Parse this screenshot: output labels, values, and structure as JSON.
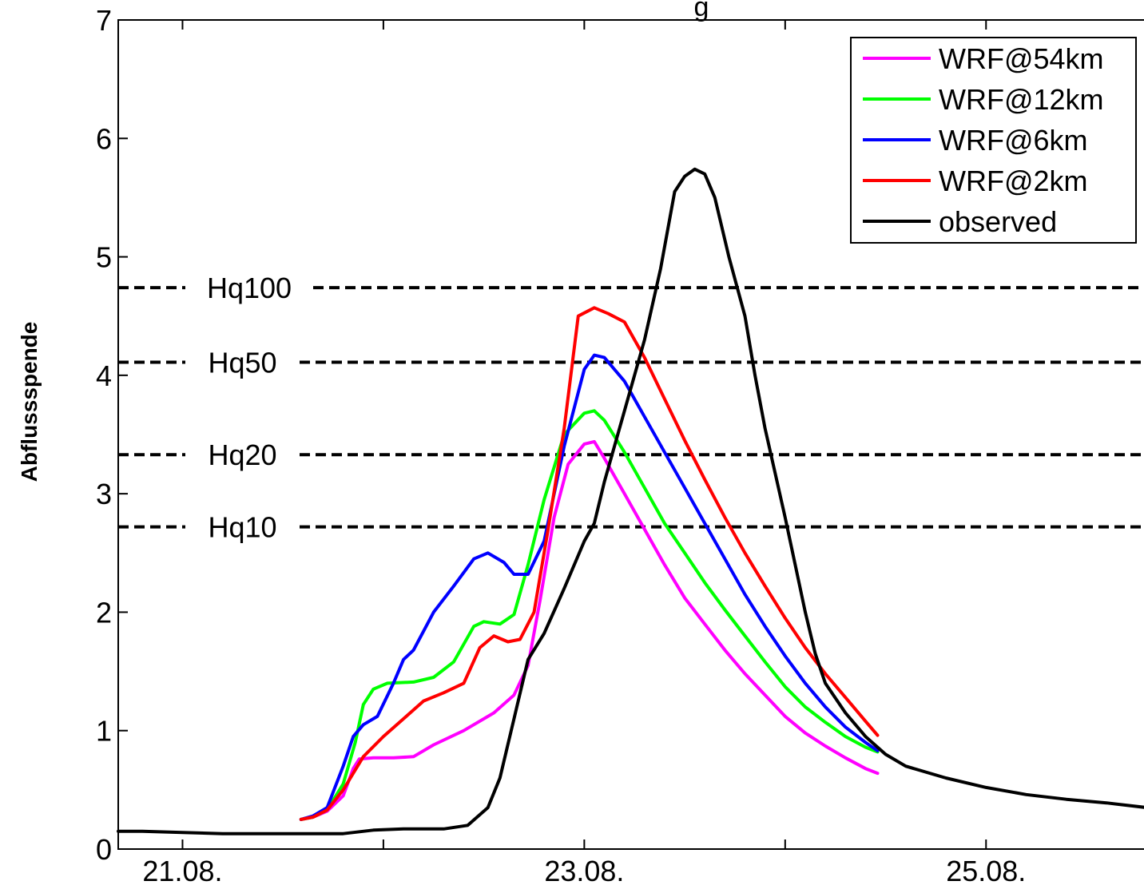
{
  "chart_data": {
    "type": "line",
    "title_fragment": "g",
    "ylabel": "Abflussspende",
    "xlabel": "",
    "x_tick_labels": [
      "21.08.",
      "23.08.",
      "25.08."
    ],
    "y_ticks": [
      0,
      1,
      2,
      3,
      4,
      5,
      6,
      7
    ],
    "xlim": [
      20.68,
      25.85
    ],
    "ylim": [
      0,
      7
    ],
    "grid": false,
    "legend_position": "top-right",
    "reference_lines": [
      {
        "label": "Hq100",
        "value": 4.74
      },
      {
        "label": "Hq50",
        "value": 4.11
      },
      {
        "label": "Hq20",
        "value": 3.33
      },
      {
        "label": "Hq10",
        "value": 2.72
      }
    ],
    "series": [
      {
        "name": "WRF@54km",
        "color": "#ff00ff",
        "points": [
          [
            21.59,
            0.25
          ],
          [
            21.65,
            0.27
          ],
          [
            21.72,
            0.32
          ],
          [
            21.8,
            0.45
          ],
          [
            21.85,
            0.68
          ],
          [
            21.88,
            0.76
          ],
          [
            21.95,
            0.77
          ],
          [
            22.05,
            0.77
          ],
          [
            22.15,
            0.78
          ],
          [
            22.25,
            0.88
          ],
          [
            22.4,
            1.0
          ],
          [
            22.55,
            1.15
          ],
          [
            22.65,
            1.3
          ],
          [
            22.72,
            1.55
          ],
          [
            22.78,
            2.1
          ],
          [
            22.85,
            2.8
          ],
          [
            22.92,
            3.25
          ],
          [
            23.0,
            3.42
          ],
          [
            23.05,
            3.44
          ],
          [
            23.1,
            3.3
          ],
          [
            23.2,
            3.0
          ],
          [
            23.3,
            2.7
          ],
          [
            23.4,
            2.4
          ],
          [
            23.5,
            2.12
          ],
          [
            23.6,
            1.9
          ],
          [
            23.7,
            1.68
          ],
          [
            23.8,
            1.48
          ],
          [
            23.9,
            1.3
          ],
          [
            24.0,
            1.12
          ],
          [
            24.1,
            0.98
          ],
          [
            24.2,
            0.87
          ],
          [
            24.3,
            0.77
          ],
          [
            24.4,
            0.68
          ],
          [
            24.46,
            0.64
          ]
        ]
      },
      {
        "name": "WRF@12km",
        "color": "#00ff00",
        "points": [
          [
            21.59,
            0.25
          ],
          [
            21.65,
            0.27
          ],
          [
            21.72,
            0.33
          ],
          [
            21.8,
            0.55
          ],
          [
            21.86,
            0.9
          ],
          [
            21.9,
            1.22
          ],
          [
            21.95,
            1.35
          ],
          [
            22.02,
            1.4
          ],
          [
            22.15,
            1.41
          ],
          [
            22.25,
            1.45
          ],
          [
            22.35,
            1.58
          ],
          [
            22.45,
            1.88
          ],
          [
            22.5,
            1.92
          ],
          [
            22.58,
            1.9
          ],
          [
            22.65,
            1.98
          ],
          [
            22.72,
            2.4
          ],
          [
            22.8,
            2.95
          ],
          [
            22.9,
            3.5
          ],
          [
            23.0,
            3.68
          ],
          [
            23.05,
            3.7
          ],
          [
            23.1,
            3.62
          ],
          [
            23.2,
            3.35
          ],
          [
            23.3,
            3.05
          ],
          [
            23.4,
            2.75
          ],
          [
            23.5,
            2.5
          ],
          [
            23.6,
            2.25
          ],
          [
            23.7,
            2.02
          ],
          [
            23.8,
            1.8
          ],
          [
            23.9,
            1.58
          ],
          [
            24.0,
            1.37
          ],
          [
            24.1,
            1.2
          ],
          [
            24.2,
            1.07
          ],
          [
            24.3,
            0.95
          ],
          [
            24.4,
            0.86
          ],
          [
            24.46,
            0.82
          ]
        ]
      },
      {
        "name": "WRF@6km",
        "color": "#0000ff",
        "points": [
          [
            21.59,
            0.25
          ],
          [
            21.65,
            0.28
          ],
          [
            21.72,
            0.35
          ],
          [
            21.8,
            0.7
          ],
          [
            21.85,
            0.95
          ],
          [
            21.9,
            1.05
          ],
          [
            21.97,
            1.12
          ],
          [
            22.05,
            1.4
          ],
          [
            22.1,
            1.6
          ],
          [
            22.15,
            1.68
          ],
          [
            22.25,
            2.0
          ],
          [
            22.35,
            2.22
          ],
          [
            22.45,
            2.45
          ],
          [
            22.52,
            2.5
          ],
          [
            22.6,
            2.42
          ],
          [
            22.65,
            2.32
          ],
          [
            22.72,
            2.32
          ],
          [
            22.8,
            2.6
          ],
          [
            22.9,
            3.4
          ],
          [
            23.0,
            4.05
          ],
          [
            23.05,
            4.17
          ],
          [
            23.1,
            4.15
          ],
          [
            23.2,
            3.95
          ],
          [
            23.3,
            3.65
          ],
          [
            23.4,
            3.35
          ],
          [
            23.5,
            3.05
          ],
          [
            23.6,
            2.75
          ],
          [
            23.7,
            2.45
          ],
          [
            23.8,
            2.15
          ],
          [
            23.9,
            1.88
          ],
          [
            24.0,
            1.63
          ],
          [
            24.1,
            1.4
          ],
          [
            24.2,
            1.2
          ],
          [
            24.3,
            1.03
          ],
          [
            24.4,
            0.9
          ],
          [
            24.46,
            0.83
          ]
        ]
      },
      {
        "name": "WRF@2km",
        "color": "#ff0000",
        "points": [
          [
            21.59,
            0.25
          ],
          [
            21.65,
            0.27
          ],
          [
            21.72,
            0.33
          ],
          [
            21.8,
            0.5
          ],
          [
            21.9,
            0.78
          ],
          [
            22.0,
            0.95
          ],
          [
            22.1,
            1.1
          ],
          [
            22.2,
            1.25
          ],
          [
            22.3,
            1.32
          ],
          [
            22.4,
            1.4
          ],
          [
            22.48,
            1.7
          ],
          [
            22.55,
            1.8
          ],
          [
            22.62,
            1.75
          ],
          [
            22.68,
            1.77
          ],
          [
            22.75,
            2.0
          ],
          [
            22.82,
            2.7
          ],
          [
            22.9,
            3.55
          ],
          [
            22.97,
            4.5
          ],
          [
            23.05,
            4.57
          ],
          [
            23.12,
            4.52
          ],
          [
            23.2,
            4.45
          ],
          [
            23.3,
            4.15
          ],
          [
            23.4,
            3.8
          ],
          [
            23.5,
            3.45
          ],
          [
            23.6,
            3.12
          ],
          [
            23.7,
            2.8
          ],
          [
            23.8,
            2.5
          ],
          [
            23.9,
            2.22
          ],
          [
            24.0,
            1.95
          ],
          [
            24.1,
            1.7
          ],
          [
            24.2,
            1.48
          ],
          [
            24.3,
            1.28
          ],
          [
            24.4,
            1.08
          ],
          [
            24.46,
            0.96
          ]
        ]
      },
      {
        "name": "observed",
        "color": "#000000",
        "points": [
          [
            20.68,
            0.15
          ],
          [
            20.8,
            0.15
          ],
          [
            21.0,
            0.14
          ],
          [
            21.2,
            0.13
          ],
          [
            21.4,
            0.13
          ],
          [
            21.6,
            0.13
          ],
          [
            21.8,
            0.13
          ],
          [
            21.95,
            0.16
          ],
          [
            22.1,
            0.17
          ],
          [
            22.3,
            0.17
          ],
          [
            22.42,
            0.2
          ],
          [
            22.52,
            0.35
          ],
          [
            22.58,
            0.6
          ],
          [
            22.65,
            1.1
          ],
          [
            22.72,
            1.6
          ],
          [
            22.8,
            1.82
          ],
          [
            22.9,
            2.2
          ],
          [
            23.0,
            2.6
          ],
          [
            23.05,
            2.75
          ],
          [
            23.1,
            3.1
          ],
          [
            23.2,
            3.7
          ],
          [
            23.3,
            4.3
          ],
          [
            23.38,
            4.9
          ],
          [
            23.45,
            5.55
          ],
          [
            23.5,
            5.68
          ],
          [
            23.55,
            5.74
          ],
          [
            23.6,
            5.7
          ],
          [
            23.65,
            5.5
          ],
          [
            23.72,
            5.0
          ],
          [
            23.8,
            4.5
          ],
          [
            23.85,
            4.0
          ],
          [
            23.9,
            3.55
          ],
          [
            24.0,
            2.8
          ],
          [
            24.05,
            2.4
          ],
          [
            24.1,
            2.0
          ],
          [
            24.15,
            1.65
          ],
          [
            24.2,
            1.4
          ],
          [
            24.3,
            1.15
          ],
          [
            24.4,
            0.95
          ],
          [
            24.5,
            0.8
          ],
          [
            24.6,
            0.7
          ],
          [
            24.8,
            0.6
          ],
          [
            25.0,
            0.52
          ],
          [
            25.2,
            0.46
          ],
          [
            25.4,
            0.42
          ],
          [
            25.6,
            0.39
          ],
          [
            25.8,
            0.35
          ],
          [
            25.85,
            0.34
          ]
        ]
      }
    ]
  }
}
